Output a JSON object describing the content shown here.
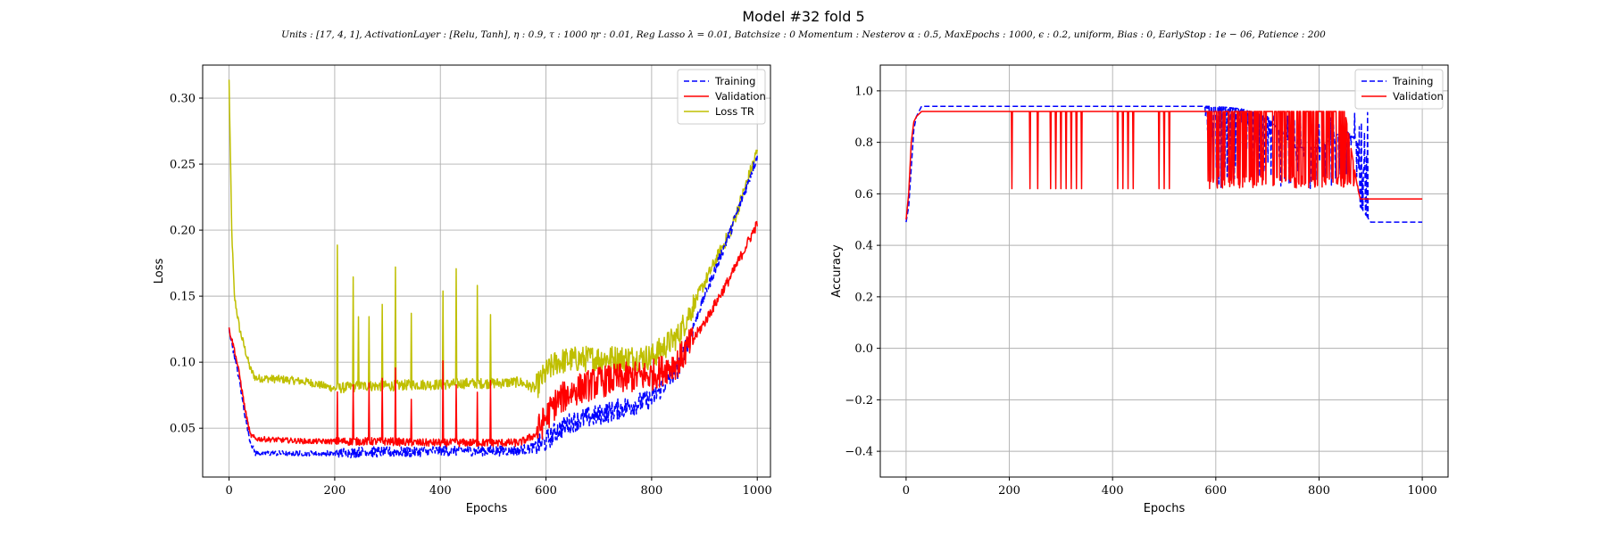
{
  "figure": {
    "title": "Model #32 fold 5",
    "subtitle": "Units : [17, 4, 1], ActivationLayer : [Relu, Tanh], η : 0.9, τ : 1000 ηr : 0.01, Reg Lasso λ = 0.01, Batchsize : 0 Momentum : Nesterov α : 0.5, MaxEpochs : 1000, ϵ : 0.2, uniform, Bias : 0, EarlyStop : 1e − 06, Patience : 200"
  },
  "colors": {
    "training": "#0000ff",
    "validation": "#ff0000",
    "loss_tr": "#bfbf00",
    "grid": "#b0b0b0"
  },
  "chart_data": [
    {
      "type": "line",
      "xlabel": "Epochs",
      "ylabel": "Loss",
      "xlim": [
        -50,
        1025
      ],
      "ylim": [
        0.013,
        0.325
      ],
      "xticks": [
        0,
        200,
        400,
        600,
        800,
        1000
      ],
      "yticks": [
        0.05,
        0.1,
        0.15,
        0.2,
        0.25,
        0.3
      ],
      "ytick_labels": [
        "0.05",
        "0.10",
        "0.15",
        "0.20",
        "0.25",
        "0.30"
      ],
      "grid": true,
      "legend_position": "top-right",
      "series": [
        {
          "name": "Training",
          "style": "dashed",
          "color": "#0000ff",
          "x": [
            0,
            10,
            20,
            30,
            40,
            50,
            100,
            150,
            200,
            250,
            300,
            350,
            400,
            450,
            500,
            550,
            580,
            600,
            620,
            650,
            700,
            750,
            800,
            850,
            900,
            950,
            1000
          ],
          "y": [
            0.125,
            0.105,
            0.085,
            0.06,
            0.04,
            0.031,
            0.031,
            0.031,
            0.031,
            0.032,
            0.032,
            0.032,
            0.033,
            0.033,
            0.033,
            0.033,
            0.036,
            0.04,
            0.048,
            0.055,
            0.06,
            0.066,
            0.072,
            0.095,
            0.15,
            0.2,
            0.256
          ],
          "noise_band": [
            [
              0,
              200,
              0.002
            ],
            [
              200,
              580,
              0.004
            ],
            [
              580,
              880,
              0.008
            ],
            [
              880,
              1000,
              0.004
            ]
          ]
        },
        {
          "name": "Validation",
          "style": "solid",
          "color": "#ff0000",
          "x": [
            0,
            10,
            20,
            30,
            40,
            50,
            100,
            150,
            200,
            250,
            300,
            350,
            400,
            450,
            500,
            550,
            580,
            600,
            620,
            650,
            700,
            750,
            800,
            850,
            900,
            950,
            1000
          ],
          "y": [
            0.125,
            0.11,
            0.09,
            0.065,
            0.045,
            0.042,
            0.041,
            0.04,
            0.04,
            0.04,
            0.04,
            0.039,
            0.039,
            0.039,
            0.039,
            0.039,
            0.045,
            0.058,
            0.07,
            0.078,
            0.085,
            0.088,
            0.09,
            0.1,
            0.13,
            0.165,
            0.205
          ],
          "noise_band": [
            [
              0,
              200,
              0.002
            ],
            [
              200,
              580,
              0.003
            ],
            [
              580,
              880,
              0.012
            ],
            [
              880,
              1000,
              0.004
            ]
          ],
          "spikes_x": [
            205,
            235,
            265,
            290,
            315,
            345,
            405,
            430,
            470,
            495
          ]
        },
        {
          "name": "Loss TR",
          "style": "solid",
          "color": "#bfbf00",
          "x": [
            0,
            5,
            10,
            20,
            30,
            40,
            50,
            100,
            150,
            200,
            250,
            300,
            350,
            400,
            450,
            500,
            550,
            580,
            600,
            620,
            650,
            700,
            750,
            800,
            850,
            900,
            950,
            1000
          ],
          "y": [
            0.313,
            0.2,
            0.15,
            0.125,
            0.11,
            0.095,
            0.088,
            0.087,
            0.085,
            0.08,
            0.082,
            0.082,
            0.083,
            0.083,
            0.084,
            0.084,
            0.085,
            0.08,
            0.092,
            0.1,
            0.102,
            0.103,
            0.103,
            0.104,
            0.12,
            0.16,
            0.2,
            0.26
          ],
          "noise_band": [
            [
              0,
              200,
              0.003
            ],
            [
              200,
              580,
              0.004
            ],
            [
              580,
              880,
              0.01
            ],
            [
              880,
              1000,
              0.005
            ]
          ],
          "spikes_x": [
            205,
            235,
            245,
            265,
            290,
            315,
            345,
            405,
            430,
            470,
            495
          ]
        }
      ]
    },
    {
      "type": "line",
      "xlabel": "Epochs",
      "ylabel": "Accuracy",
      "xlim": [
        -50,
        1050
      ],
      "ylim": [
        -0.5,
        1.1
      ],
      "xticks": [
        0,
        200,
        400,
        600,
        800,
        1000
      ],
      "yticks": [
        -0.4,
        -0.2,
        0.0,
        0.2,
        0.4,
        0.6,
        0.8,
        1.0
      ],
      "ytick_labels": [
        "−0.4",
        "−0.2",
        "0.0",
        "0.2",
        "0.4",
        "0.6",
        "0.8",
        "1.0"
      ],
      "grid": true,
      "legend_position": "top-right",
      "series": [
        {
          "name": "Training",
          "style": "dashed",
          "color": "#0000ff",
          "x": [
            0,
            5,
            10,
            15,
            20,
            30,
            50,
            200,
            400,
            580,
            600,
            650,
            700,
            750,
            800,
            850,
            875,
            880,
            900,
            1000
          ],
          "y": [
            0.49,
            0.55,
            0.7,
            0.85,
            0.9,
            0.94,
            0.94,
            0.94,
            0.94,
            0.94,
            0.94,
            0.93,
            0.9,
            0.78,
            0.78,
            0.85,
            0.8,
            0.55,
            0.49,
            0.49
          ]
        },
        {
          "name": "Validation",
          "style": "solid",
          "color": "#ff0000",
          "x": [
            0,
            5,
            10,
            15,
            20,
            30,
            50,
            200,
            400,
            580,
            600,
            650,
            700,
            750,
            800,
            850,
            875,
            880,
            900,
            1000
          ],
          "y": [
            0.5,
            0.6,
            0.8,
            0.88,
            0.9,
            0.92,
            0.92,
            0.92,
            0.92,
            0.92,
            0.92,
            0.92,
            0.92,
            0.92,
            0.92,
            0.92,
            0.62,
            0.58,
            0.58,
            0.58
          ],
          "drops_x": [
            205,
            240,
            255,
            280,
            290,
            300,
            310,
            320,
            330,
            340,
            410,
            420,
            430,
            440,
            490,
            500,
            510
          ],
          "drop_to": 0.62
        }
      ]
    }
  ]
}
